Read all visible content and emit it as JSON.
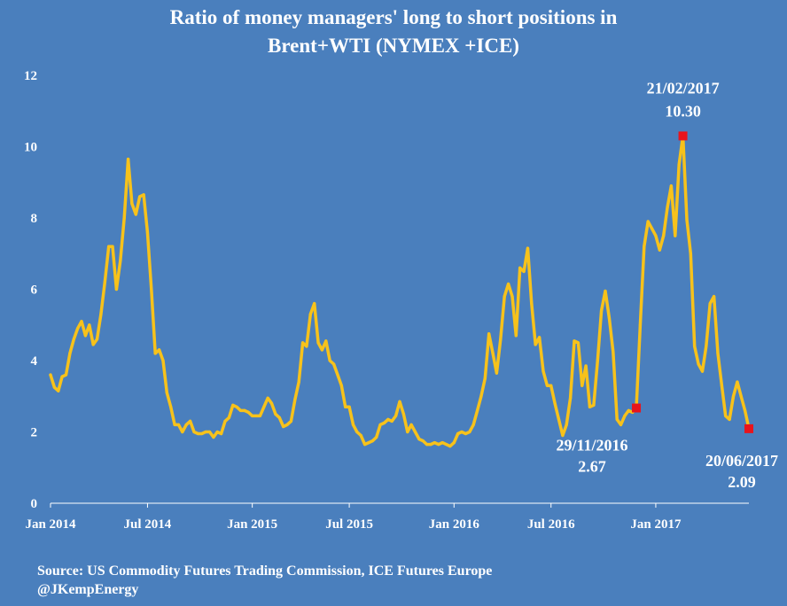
{
  "title_line1": "Ratio of  money managers' long to short positions in",
  "title_line2": "Brent+WTI (NYMEX +ICE)",
  "source_line1": "Source: US Commodity Futures Trading Commission, ICE Futures Europe",
  "source_line2": "@JKempEnergy",
  "colors": {
    "background": "#4a7fbd",
    "line": "#f7c21b",
    "marker": "#e8141c",
    "text": "#ffffff"
  },
  "chart_data": {
    "type": "line",
    "title": "Ratio of  money managers' long to short positions in Brent+WTI (NYMEX +ICE)",
    "xlabel": "",
    "ylabel": "",
    "ylim": [
      0,
      12
    ],
    "yticks": [
      0,
      2,
      4,
      6,
      8,
      10,
      12
    ],
    "x_tick_labels": [
      "Jan 2014",
      "Jul 2014",
      "Jan 2015",
      "Jul 2015",
      "Jan 2016",
      "Jul 2016",
      "Jan 2017"
    ],
    "x_tick_dates": [
      "2014-01-07",
      "2014-07-01",
      "2015-01-06",
      "2015-06-30",
      "2016-01-05",
      "2016-06-28",
      "2017-01-03"
    ],
    "grid": false,
    "series": [
      {
        "values": [
          [
            "2014-01-07",
            3.6
          ],
          [
            "2014-01-14",
            3.25
          ],
          [
            "2014-01-21",
            3.15
          ],
          [
            "2014-01-28",
            3.55
          ],
          [
            "2014-02-04",
            3.6
          ],
          [
            "2014-02-11",
            4.2
          ],
          [
            "2014-02-18",
            4.6
          ],
          [
            "2014-02-25",
            4.9
          ],
          [
            "2014-03-04",
            5.1
          ],
          [
            "2014-03-11",
            4.7
          ],
          [
            "2014-03-18",
            5.0
          ],
          [
            "2014-03-25",
            4.45
          ],
          [
            "2014-04-01",
            4.6
          ],
          [
            "2014-04-08",
            5.3
          ],
          [
            "2014-04-15",
            6.2
          ],
          [
            "2014-04-22",
            7.2
          ],
          [
            "2014-04-29",
            7.2
          ],
          [
            "2014-05-06",
            6.0
          ],
          [
            "2014-05-13",
            6.8
          ],
          [
            "2014-05-20",
            8.0
          ],
          [
            "2014-05-27",
            9.65
          ],
          [
            "2014-06-03",
            8.4
          ],
          [
            "2014-06-10",
            8.1
          ],
          [
            "2014-06-17",
            8.6
          ],
          [
            "2014-06-24",
            8.65
          ],
          [
            "2014-07-01",
            7.6
          ],
          [
            "2014-07-08",
            6.0
          ],
          [
            "2014-07-15",
            4.2
          ],
          [
            "2014-07-22",
            4.3
          ],
          [
            "2014-07-29",
            4.0
          ],
          [
            "2014-08-05",
            3.1
          ],
          [
            "2014-08-12",
            2.7
          ],
          [
            "2014-08-19",
            2.2
          ],
          [
            "2014-08-26",
            2.2
          ],
          [
            "2014-09-02",
            2.0
          ],
          [
            "2014-09-09",
            2.2
          ],
          [
            "2014-09-16",
            2.3
          ],
          [
            "2014-09-23",
            2.0
          ],
          [
            "2014-09-30",
            1.95
          ],
          [
            "2014-10-07",
            1.95
          ],
          [
            "2014-10-14",
            2.0
          ],
          [
            "2014-10-21",
            2.0
          ],
          [
            "2014-10-28",
            1.85
          ],
          [
            "2014-11-04",
            2.0
          ],
          [
            "2014-11-11",
            1.95
          ],
          [
            "2014-11-18",
            2.3
          ],
          [
            "2014-11-25",
            2.4
          ],
          [
            "2014-12-02",
            2.75
          ],
          [
            "2014-12-09",
            2.7
          ],
          [
            "2014-12-16",
            2.6
          ],
          [
            "2014-12-23",
            2.6
          ],
          [
            "2014-12-30",
            2.55
          ],
          [
            "2015-01-06",
            2.45
          ],
          [
            "2015-01-13",
            2.45
          ],
          [
            "2015-01-20",
            2.45
          ],
          [
            "2015-01-27",
            2.7
          ],
          [
            "2015-02-03",
            2.95
          ],
          [
            "2015-02-10",
            2.8
          ],
          [
            "2015-02-17",
            2.5
          ],
          [
            "2015-02-24",
            2.4
          ],
          [
            "2015-03-03",
            2.15
          ],
          [
            "2015-03-10",
            2.2
          ],
          [
            "2015-03-17",
            2.3
          ],
          [
            "2015-03-24",
            2.9
          ],
          [
            "2015-03-31",
            3.4
          ],
          [
            "2015-04-07",
            4.5
          ],
          [
            "2015-04-14",
            4.4
          ],
          [
            "2015-04-21",
            5.3
          ],
          [
            "2015-04-28",
            5.6
          ],
          [
            "2015-05-05",
            4.5
          ],
          [
            "2015-05-12",
            4.3
          ],
          [
            "2015-05-19",
            4.55
          ],
          [
            "2015-05-26",
            4.0
          ],
          [
            "2015-06-02",
            3.9
          ],
          [
            "2015-06-09",
            3.6
          ],
          [
            "2015-06-16",
            3.3
          ],
          [
            "2015-06-23",
            2.7
          ],
          [
            "2015-06-30",
            2.7
          ],
          [
            "2015-07-07",
            2.2
          ],
          [
            "2015-07-14",
            2.0
          ],
          [
            "2015-07-21",
            1.9
          ],
          [
            "2015-07-28",
            1.65
          ],
          [
            "2015-08-04",
            1.7
          ],
          [
            "2015-08-11",
            1.75
          ],
          [
            "2015-08-18",
            1.85
          ],
          [
            "2015-08-25",
            2.2
          ],
          [
            "2015-09-01",
            2.25
          ],
          [
            "2015-09-08",
            2.35
          ],
          [
            "2015-09-15",
            2.3
          ],
          [
            "2015-09-22",
            2.45
          ],
          [
            "2015-09-29",
            2.85
          ],
          [
            "2015-10-06",
            2.5
          ],
          [
            "2015-10-13",
            2.0
          ],
          [
            "2015-10-20",
            2.2
          ],
          [
            "2015-10-27",
            2.0
          ],
          [
            "2015-11-03",
            1.8
          ],
          [
            "2015-11-10",
            1.75
          ],
          [
            "2015-11-17",
            1.65
          ],
          [
            "2015-11-24",
            1.65
          ],
          [
            "2015-12-01",
            1.7
          ],
          [
            "2015-12-08",
            1.65
          ],
          [
            "2015-12-15",
            1.7
          ],
          [
            "2015-12-22",
            1.65
          ],
          [
            "2015-12-29",
            1.6
          ],
          [
            "2016-01-05",
            1.7
          ],
          [
            "2016-01-12",
            1.95
          ],
          [
            "2016-01-19",
            2.0
          ],
          [
            "2016-01-26",
            1.95
          ],
          [
            "2016-02-02",
            2.0
          ],
          [
            "2016-02-09",
            2.2
          ],
          [
            "2016-02-16",
            2.6
          ],
          [
            "2016-02-23",
            3.0
          ],
          [
            "2016-03-01",
            3.5
          ],
          [
            "2016-03-08",
            4.75
          ],
          [
            "2016-03-15",
            4.2
          ],
          [
            "2016-03-22",
            3.65
          ],
          [
            "2016-03-29",
            4.6
          ],
          [
            "2016-04-05",
            5.8
          ],
          [
            "2016-04-12",
            6.15
          ],
          [
            "2016-04-19",
            5.8
          ],
          [
            "2016-04-26",
            4.7
          ],
          [
            "2016-05-03",
            6.6
          ],
          [
            "2016-05-10",
            6.5
          ],
          [
            "2016-05-17",
            7.15
          ],
          [
            "2016-05-24",
            5.6
          ],
          [
            "2016-05-31",
            4.45
          ],
          [
            "2016-06-07",
            4.65
          ],
          [
            "2016-06-14",
            3.7
          ],
          [
            "2016-06-21",
            3.3
          ],
          [
            "2016-06-28",
            3.3
          ],
          [
            "2016-07-05",
            2.8
          ],
          [
            "2016-07-12",
            2.35
          ],
          [
            "2016-07-19",
            1.9
          ],
          [
            "2016-07-26",
            2.2
          ],
          [
            "2016-08-02",
            2.95
          ],
          [
            "2016-08-09",
            4.55
          ],
          [
            "2016-08-16",
            4.5
          ],
          [
            "2016-08-23",
            3.3
          ],
          [
            "2016-08-30",
            3.85
          ],
          [
            "2016-09-06",
            2.7
          ],
          [
            "2016-09-13",
            2.75
          ],
          [
            "2016-09-20",
            4.0
          ],
          [
            "2016-09-27",
            5.4
          ],
          [
            "2016-10-04",
            5.95
          ],
          [
            "2016-10-11",
            5.2
          ],
          [
            "2016-10-18",
            4.25
          ],
          [
            "2016-10-25",
            2.35
          ],
          [
            "2016-11-01",
            2.2
          ],
          [
            "2016-11-08",
            2.45
          ],
          [
            "2016-11-15",
            2.6
          ],
          [
            "2016-11-22",
            2.55
          ],
          [
            "2016-11-29",
            2.67
          ],
          [
            "2016-12-06",
            5.0
          ],
          [
            "2016-12-13",
            7.2
          ],
          [
            "2016-12-20",
            7.9
          ],
          [
            "2016-12-27",
            7.7
          ],
          [
            "2017-01-03",
            7.5
          ],
          [
            "2017-01-10",
            7.1
          ],
          [
            "2017-01-17",
            7.5
          ],
          [
            "2017-01-24",
            8.3
          ],
          [
            "2017-01-31",
            8.9
          ],
          [
            "2017-02-07",
            7.5
          ],
          [
            "2017-02-14",
            9.5
          ],
          [
            "2017-02-21",
            10.3
          ],
          [
            "2017-02-28",
            7.95
          ],
          [
            "2017-03-07",
            7.0
          ],
          [
            "2017-03-14",
            4.4
          ],
          [
            "2017-03-21",
            3.9
          ],
          [
            "2017-03-28",
            3.7
          ],
          [
            "2017-04-04",
            4.4
          ],
          [
            "2017-04-11",
            5.6
          ],
          [
            "2017-04-18",
            5.8
          ],
          [
            "2017-04-25",
            4.2
          ],
          [
            "2017-05-02",
            3.3
          ],
          [
            "2017-05-09",
            2.45
          ],
          [
            "2017-05-16",
            2.35
          ],
          [
            "2017-05-23",
            3.0
          ],
          [
            "2017-05-30",
            3.4
          ],
          [
            "2017-06-06",
            3.0
          ],
          [
            "2017-06-13",
            2.6
          ],
          [
            "2017-06-20",
            2.09
          ]
        ]
      }
    ],
    "highlights": [
      {
        "date": "2016-11-29",
        "value": 2.67,
        "label_date": "29/11/2016",
        "label_value": "2.67"
      },
      {
        "date": "2017-02-21",
        "value": 10.3,
        "label_date": "21/02/2017",
        "label_value": "10.30"
      },
      {
        "date": "2017-06-20",
        "value": 2.09,
        "label_date": "20/06/2017",
        "label_value": "2.09"
      }
    ]
  }
}
